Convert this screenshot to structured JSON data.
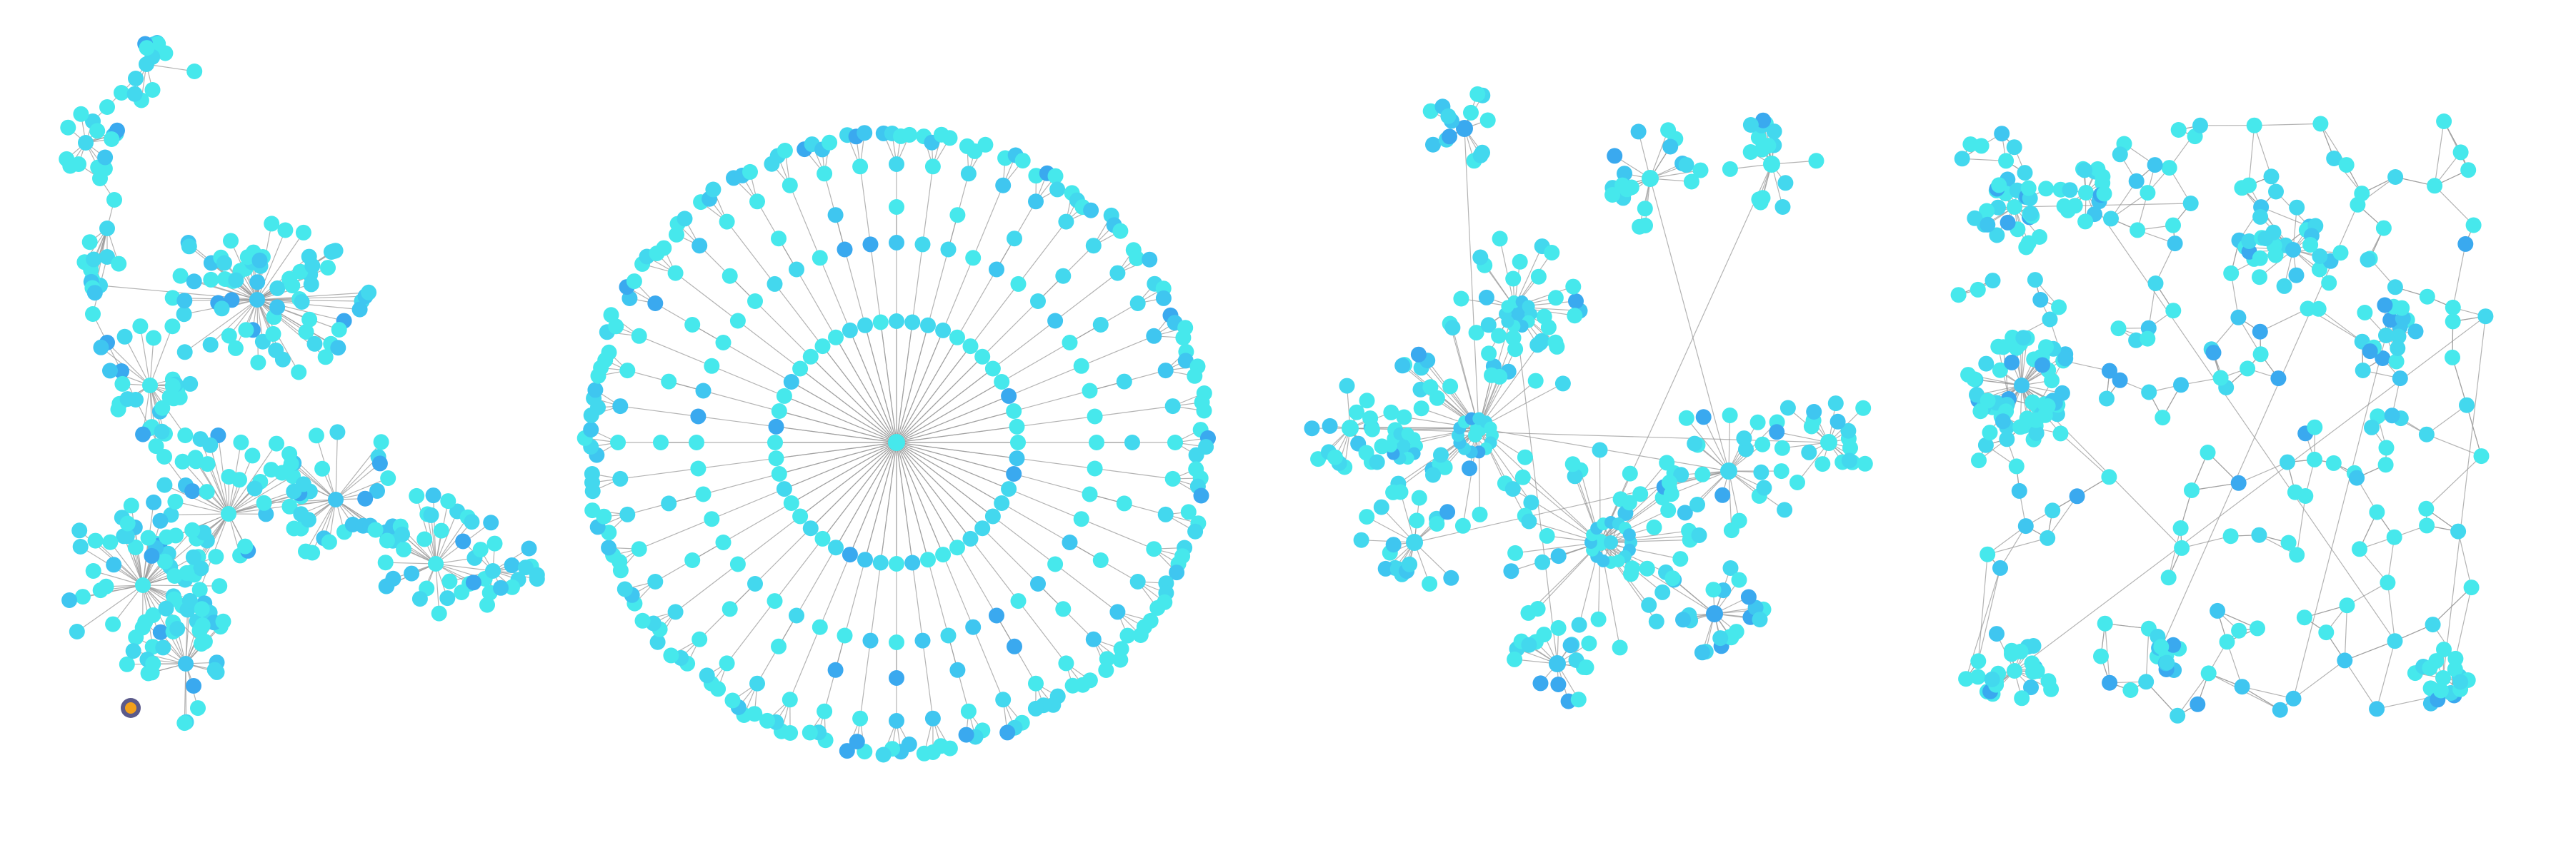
{
  "figure": {
    "panels": [
      {
        "id": "panel-1",
        "layout": "tree-cluster",
        "palette": [
          "#46e8ec",
          "#43d8ee",
          "#3fc6f0",
          "#3aa9ef"
        ]
      },
      {
        "id": "panel-2",
        "layout": "radial-tree",
        "palette": [
          "#46e8ec",
          "#43d8ee",
          "#3fc6f0",
          "#3aa9ef"
        ]
      },
      {
        "id": "panel-3",
        "layout": "force-clusters",
        "palette": [
          "#46e8ec",
          "#43d8ee",
          "#3fc6f0",
          "#3aa9ef"
        ]
      },
      {
        "id": "panel-4",
        "layout": "mesh-network",
        "palette": [
          "#46e8ec",
          "#43d8ee",
          "#3fc6f0",
          "#3aa9ef"
        ]
      }
    ],
    "highlight": {
      "panel": "panel-1",
      "fill": "#f2a01a",
      "ring": "#5b5a8a"
    }
  }
}
